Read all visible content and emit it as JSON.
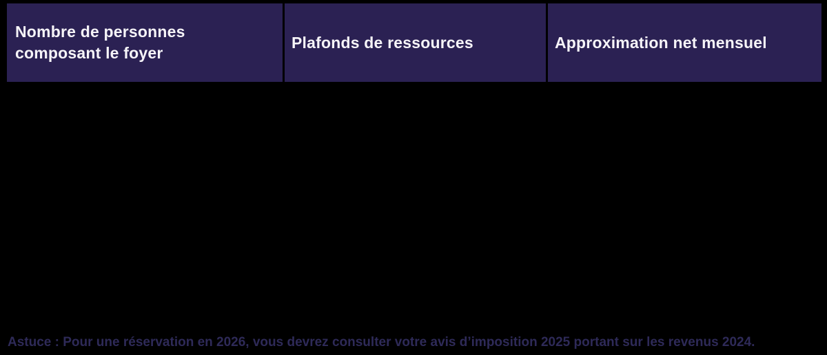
{
  "table": {
    "columns": [
      {
        "label": "Nombre de personnes composant le foyer"
      },
      {
        "label": "Plafonds de ressources"
      },
      {
        "label": "Approximation net mensuel"
      }
    ],
    "body_rows_visible": 0
  },
  "footnote": {
    "prefix": "Astuce :",
    "text": " Pour une réservation en 2026, vous devrez consulter votre avis d’imposition 2025 portant sur les revenus 2024."
  },
  "colors": {
    "header_bg": "#2b2153",
    "header_text": "#f6f4f8",
    "page_bg": "#000000",
    "footnote_text": "#2e2a58"
  }
}
